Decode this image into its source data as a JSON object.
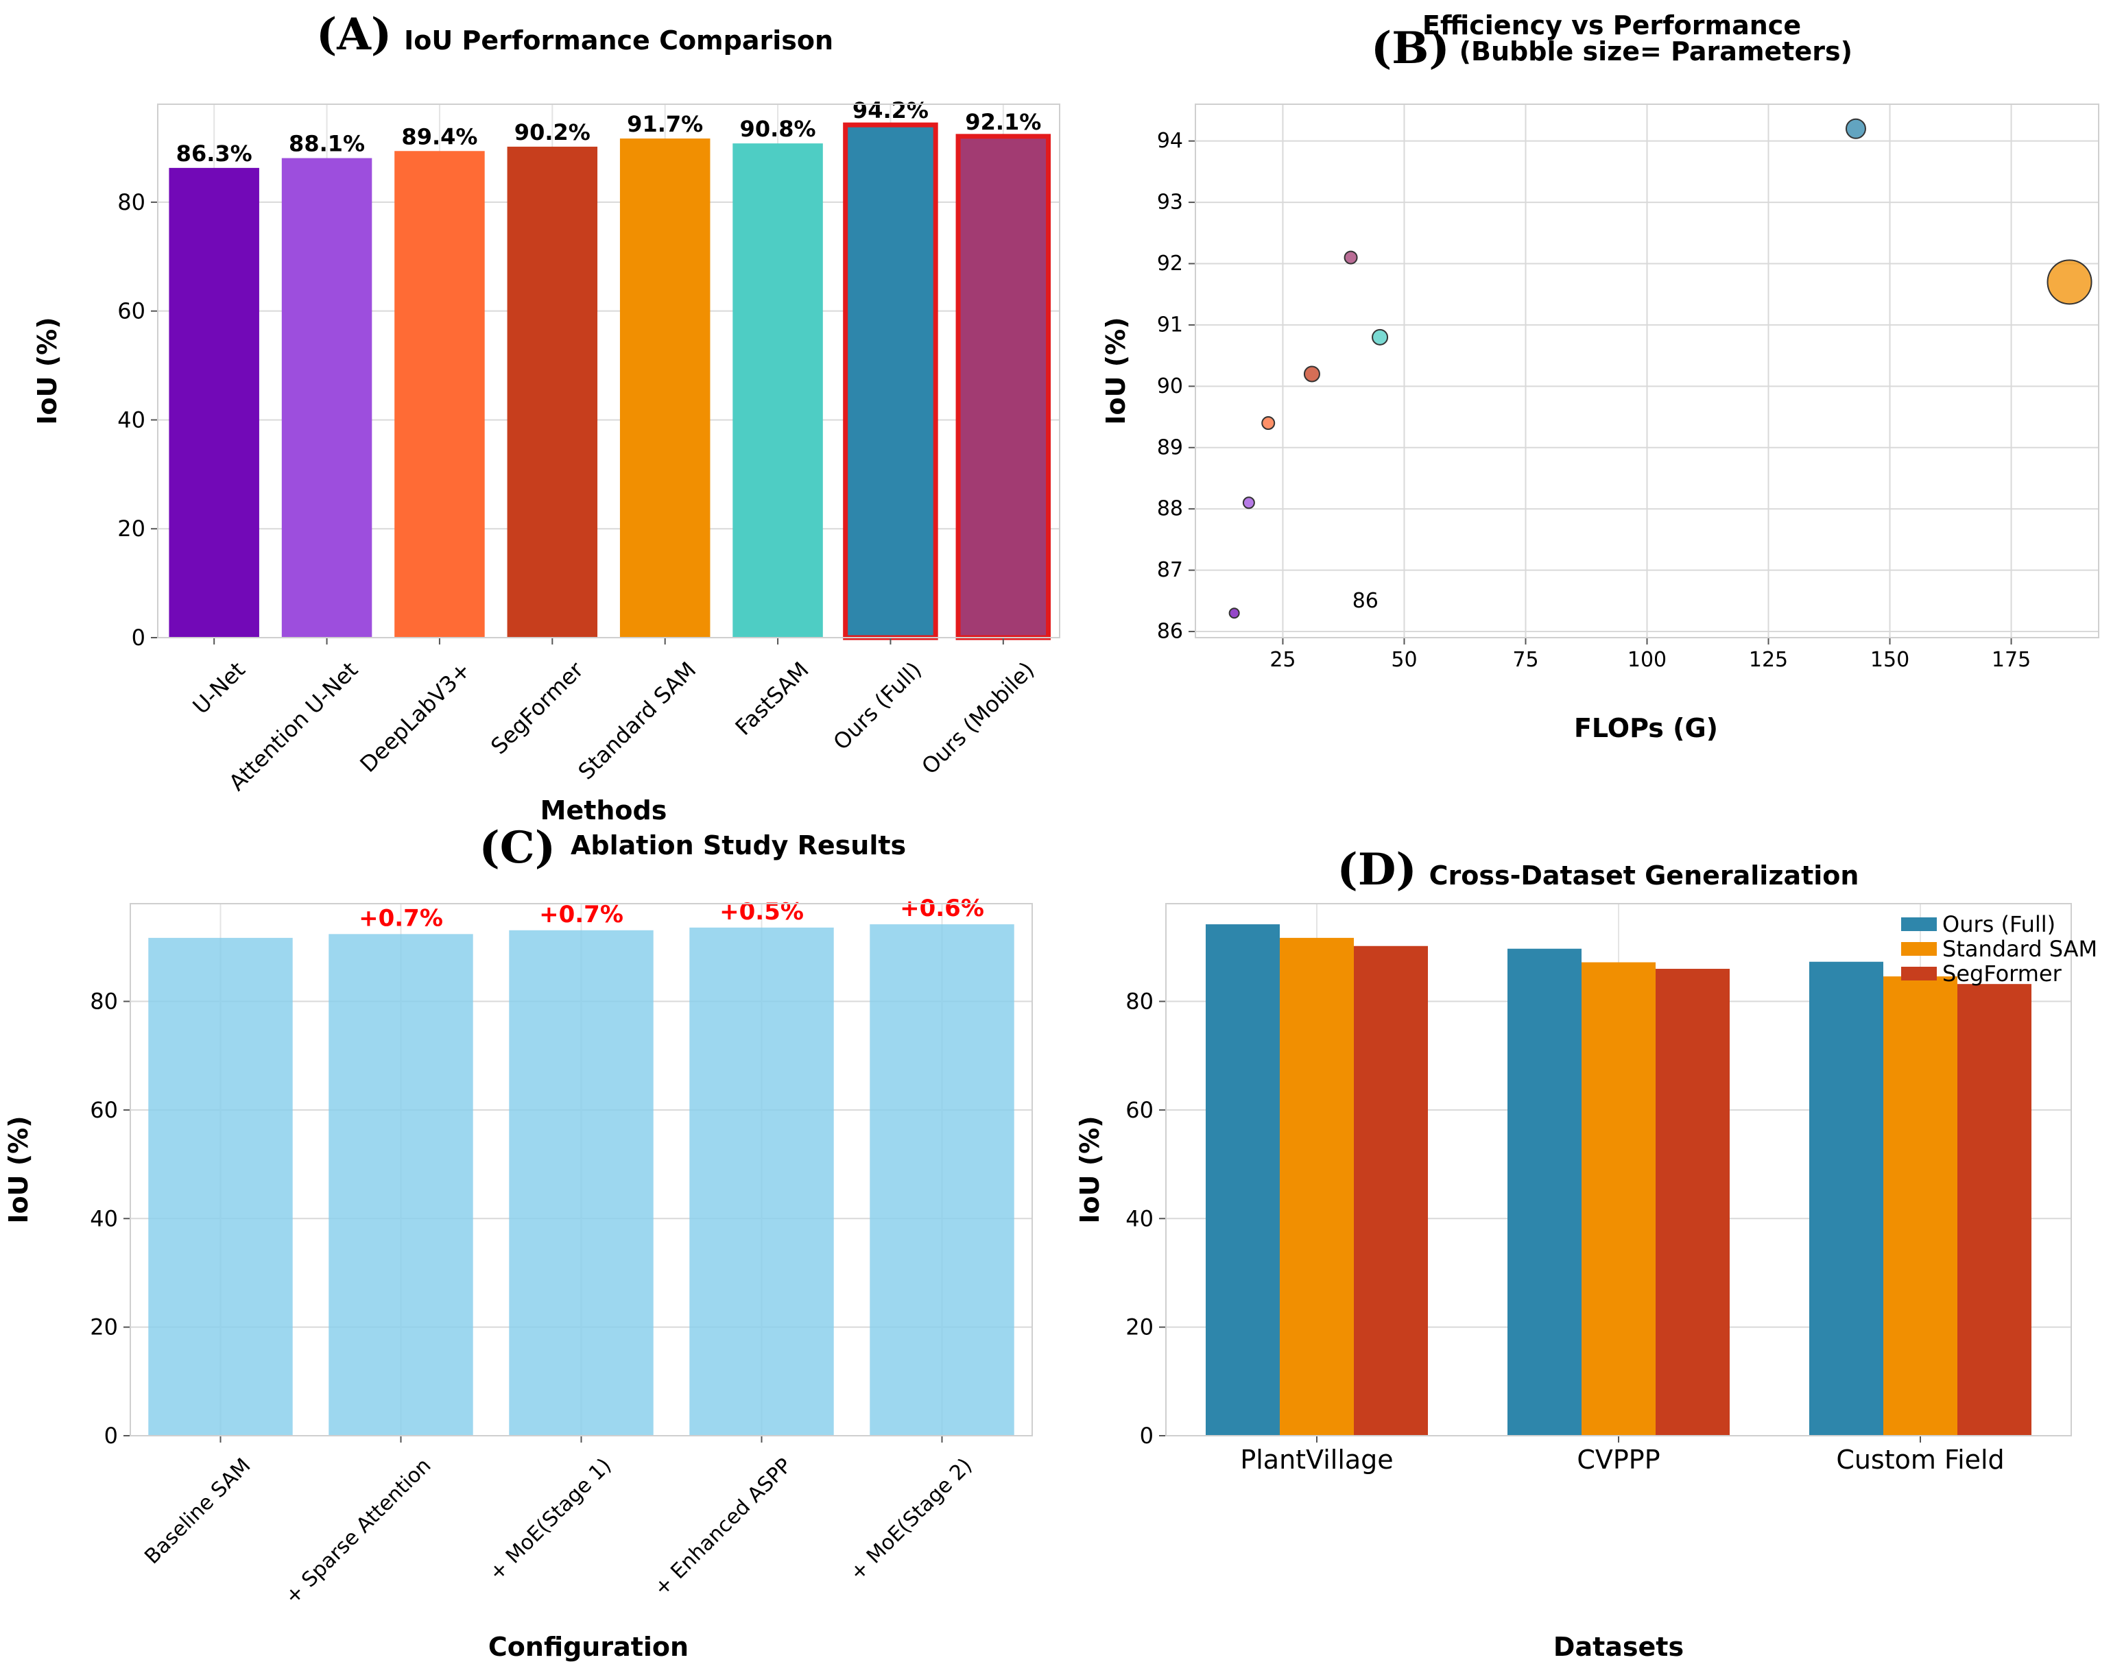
{
  "chart_data": [
    {
      "type": "bar",
      "panel": "(A)",
      "title": "IoU Performance Comparison",
      "xlabel": "Methods",
      "ylabel": "IoU (%)",
      "ylim": [
        0,
        98
      ],
      "yticks": [
        0,
        20,
        40,
        60,
        80
      ],
      "grid": true,
      "categories": [
        "U-Net",
        "Attention U-Net",
        "DeepLabV3+",
        "SegFormer",
        "Standard SAM",
        "FastSAM",
        "Ours (Full)",
        "Ours (Mobile)"
      ],
      "values": [
        86.3,
        88.1,
        89.4,
        90.2,
        91.7,
        90.8,
        94.2,
        92.1
      ],
      "value_labels": [
        "86.3%",
        "88.1%",
        "89.4%",
        "90.2%",
        "91.7%",
        "90.8%",
        "94.2%",
        "92.1%"
      ],
      "colors": [
        "#7209B7",
        "#9D4EDD",
        "#FF6B35",
        "#C73E1D",
        "#F18F01",
        "#4ECDC4",
        "#2E86AB",
        "#A23B72"
      ],
      "highlighted": [
        false,
        false,
        false,
        false,
        false,
        false,
        true,
        true
      ],
      "highlight_color": "#E31A1C"
    },
    {
      "type": "scatter",
      "panel": "(B)",
      "title": "Efficiency vs Performance",
      "subtitle": "(Bubble size= Parameters)",
      "xlabel": "FLOPs (G)",
      "ylabel": "IoU (%)",
      "xlim": [
        7,
        193
      ],
      "ylim": [
        85.9,
        94.6
      ],
      "xticks": [
        25,
        50,
        75,
        100,
        125,
        150,
        175
      ],
      "yticks": [
        86,
        87,
        88,
        89,
        90,
        91,
        92,
        93,
        94
      ],
      "grid": true,
      "points": [
        {
          "x": 15,
          "y": 86.3,
          "size": 7,
          "color": "#7209B7"
        },
        {
          "x": 18,
          "y": 88.1,
          "size": 8,
          "color": "#9D4EDD"
        },
        {
          "x": 22,
          "y": 89.4,
          "size": 9,
          "color": "#FF6B35"
        },
        {
          "x": 31,
          "y": 90.2,
          "size": 11,
          "color": "#C73E1D"
        },
        {
          "x": 39,
          "y": 92.1,
          "size": 9,
          "color": "#A23B72"
        },
        {
          "x": 45,
          "y": 90.8,
          "size": 11,
          "color": "#4ECDC4"
        },
        {
          "x": 143,
          "y": 94.2,
          "size": 14,
          "color": "#2E86AB"
        },
        {
          "x": 187,
          "y": 91.7,
          "size": 32,
          "color": "#F18F01"
        }
      ],
      "annotations": [
        {
          "text": "86",
          "x": 42,
          "y": 86.5
        }
      ]
    },
    {
      "type": "bar",
      "panel": "(C)",
      "title": "Ablation Study Results",
      "xlabel": "Configuration",
      "ylabel": "IoU (%)",
      "ylim": [
        0,
        98
      ],
      "yticks": [
        0,
        20,
        40,
        60,
        80
      ],
      "grid": true,
      "categories": [
        "Baseline SAM",
        "+ Sparse Attention",
        "+ MoE(Stage 1)",
        "+ Enhanced ASPP",
        "+ MoE(Stage 2)"
      ],
      "values": [
        91.7,
        92.4,
        93.1,
        93.6,
        94.2
      ],
      "value_labels": [
        "",
        "+0.7%",
        "+0.7%",
        "+0.5%",
        "+0.6%"
      ],
      "color": "#87CEEB",
      "label_color": "#FF0000"
    },
    {
      "type": "bar",
      "panel": "(D)",
      "title": "Cross-Dataset Generalization",
      "xlabel": "Datasets",
      "ylabel": "IoU (%)",
      "ylim": [
        0,
        98
      ],
      "yticks": [
        0,
        20,
        40,
        60,
        80
      ],
      "grid": true,
      "legend": "top-right",
      "categories": [
        "PlantVillage",
        "CVPPP",
        "Custom Field"
      ],
      "series": [
        {
          "name": "Ours (Full)",
          "values": [
            94.2,
            89.7,
            87.3
          ],
          "color": "#2E86AB"
        },
        {
          "name": "Standard SAM",
          "values": [
            91.7,
            87.2,
            84.6
          ],
          "color": "#F18F01"
        },
        {
          "name": "SegFormer",
          "values": [
            90.2,
            86.0,
            83.2
          ],
          "color": "#C73E1D"
        }
      ]
    }
  ]
}
